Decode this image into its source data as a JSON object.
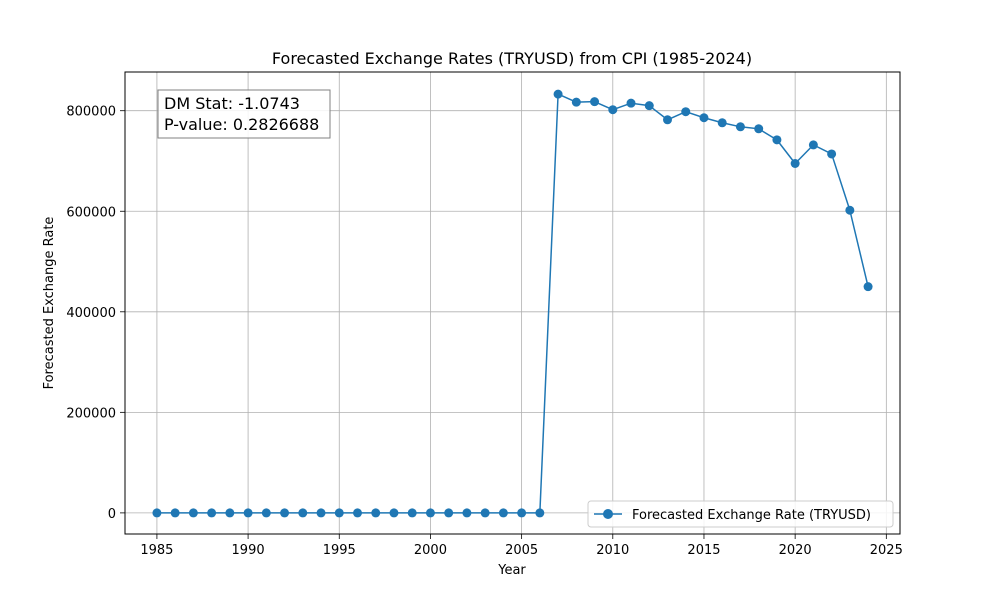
{
  "chart_data": {
    "type": "line",
    "title": "Forecasted Exchange Rates (TRYUSD) from CPI (1985-2024)",
    "xlabel": "Year",
    "ylabel": "Forecasted Exchange Rate",
    "xlim": [
      1983.25,
      2025.75
    ],
    "ylim": [
      -42000,
      877000
    ],
    "xticks": [
      1985,
      1990,
      1995,
      2000,
      2005,
      2010,
      2015,
      2020,
      2025
    ],
    "yticks": [
      0,
      200000,
      400000,
      600000,
      800000
    ],
    "grid": true,
    "legend_position": "lower-right",
    "annotation": {
      "line1": "DM Stat: -1.0743",
      "line2": "P-value: 0.2826688"
    },
    "series": [
      {
        "name": "Forecasted Exchange Rate (TRYUSD)",
        "color": "#1f77b4",
        "marker": "circle",
        "x": [
          1985,
          1986,
          1987,
          1988,
          1989,
          1990,
          1991,
          1992,
          1993,
          1994,
          1995,
          1996,
          1997,
          1998,
          1999,
          2000,
          2001,
          2002,
          2003,
          2004,
          2005,
          2006,
          2007,
          2008,
          2009,
          2010,
          2011,
          2012,
          2013,
          2014,
          2015,
          2016,
          2017,
          2018,
          2019,
          2020,
          2021,
          2022,
          2023,
          2024
        ],
        "values": [
          0,
          0,
          0,
          0,
          0,
          0,
          0,
          0,
          0,
          0,
          0,
          0,
          0,
          0,
          0,
          0,
          0,
          0,
          0,
          0,
          0,
          0,
          833000,
          817000,
          818000,
          802000,
          815000,
          810000,
          782000,
          798000,
          786000,
          776000,
          768000,
          764000,
          742000,
          695000,
          732000,
          714000,
          602000,
          450000
        ]
      }
    ]
  }
}
